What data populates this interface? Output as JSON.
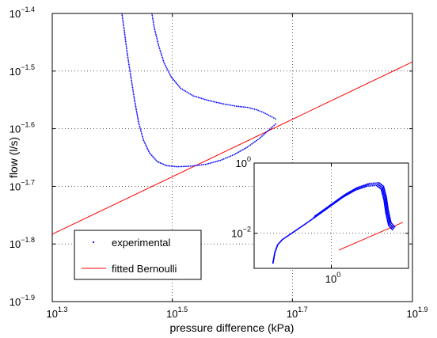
{
  "chart_data": [
    {
      "id": "main",
      "type": "scatter",
      "title": "",
      "xlabel": "pressure difference (kPa)",
      "ylabel": "flow (l/s)",
      "xscale": "log",
      "yscale": "log",
      "xlim_log10": [
        1.3,
        1.9
      ],
      "ylim_log10": [
        -1.9,
        -1.4
      ],
      "xticks": [
        {
          "base": "10",
          "exp": "1.3",
          "log10": 1.3
        },
        {
          "base": "10",
          "exp": "1.5",
          "log10": 1.5
        },
        {
          "base": "10",
          "exp": "1.7",
          "log10": 1.7
        },
        {
          "base": "10",
          "exp": "1.9",
          "log10": 1.9
        }
      ],
      "yticks": [
        {
          "base": "10",
          "exp": "−1.4",
          "log10": -1.4
        },
        {
          "base": "10",
          "exp": "−1.5",
          "log10": -1.5
        },
        {
          "base": "10",
          "exp": "−1.6",
          "log10": -1.6
        },
        {
          "base": "10",
          "exp": "−1.7",
          "log10": -1.7
        },
        {
          "base": "10",
          "exp": "−1.8",
          "log10": -1.8
        },
        {
          "base": "10",
          "exp": "−1.9",
          "log10": -1.9
        }
      ],
      "grid": "dotted, at major ticks",
      "legend_position": "bottom-left",
      "series": [
        {
          "name": "experimental",
          "style": "points",
          "color": "#0000ff",
          "branches_log10": [
            [
              [
                1.416,
                -1.4
              ],
              [
                1.42,
                -1.43
              ],
              [
                1.425,
                -1.47
              ],
              [
                1.431,
                -1.51
              ],
              [
                1.437,
                -1.55
              ],
              [
                1.444,
                -1.59
              ],
              [
                1.452,
                -1.62
              ],
              [
                1.462,
                -1.642
              ],
              [
                1.475,
                -1.657
              ],
              [
                1.49,
                -1.664
              ],
              [
                1.507,
                -1.666
              ],
              [
                1.53,
                -1.665
              ],
              [
                1.555,
                -1.662
              ],
              [
                1.58,
                -1.655
              ],
              [
                1.603,
                -1.645
              ],
              [
                1.625,
                -1.632
              ],
              [
                1.645,
                -1.617
              ],
              [
                1.66,
                -1.603
              ],
              [
                1.672,
                -1.592
              ]
            ],
            [
              [
                1.466,
                -1.4
              ],
              [
                1.47,
                -1.425
              ],
              [
                1.477,
                -1.455
              ],
              [
                1.486,
                -1.485
              ],
              [
                1.498,
                -1.51
              ],
              [
                1.514,
                -1.53
              ],
              [
                1.535,
                -1.543
              ],
              [
                1.56,
                -1.551
              ],
              [
                1.585,
                -1.557
              ],
              [
                1.607,
                -1.561
              ],
              [
                1.625,
                -1.563
              ],
              [
                1.64,
                -1.567
              ],
              [
                1.652,
                -1.572
              ],
              [
                1.663,
                -1.578
              ],
              [
                1.672,
                -1.583
              ]
            ]
          ]
        },
        {
          "name": "fitted Bernoulli",
          "style": "line",
          "color": "#ff0000",
          "x_log10": [
            1.3,
            1.9
          ],
          "y_log10": [
            -1.783,
            -1.484
          ]
        }
      ]
    },
    {
      "id": "inset",
      "type": "scatter",
      "title": "",
      "xlabel": "",
      "ylabel": "",
      "xscale": "log",
      "yscale": "log",
      "xlim_log10": [
        -0.82,
        0.82
      ],
      "ylim_log10": [
        -3.0,
        0.0
      ],
      "xticks": [
        {
          "base": "10",
          "exp": "0",
          "log10": 0
        }
      ],
      "yticks": [
        {
          "base": "10",
          "exp": "0",
          "log10": 0
        },
        {
          "base": "10",
          "exp": "−2",
          "log10": -2
        }
      ],
      "grid": "dotted, at major ticks",
      "series": [
        {
          "name": "experimental",
          "style": "points",
          "color": "#0000ff",
          "path_log10": [
            [
              -0.62,
              -2.85
            ],
            [
              -0.6,
              -2.55
            ],
            [
              -0.57,
              -2.33
            ],
            [
              -0.52,
              -2.18
            ],
            [
              -0.42,
              -2.0
            ],
            [
              -0.3,
              -1.78
            ],
            [
              -0.15,
              -1.5
            ],
            [
              0.0,
              -1.21
            ],
            [
              0.12,
              -0.98
            ],
            [
              0.25,
              -0.78
            ],
            [
              0.38,
              -0.66
            ],
            [
              0.48,
              -0.64
            ],
            [
              0.53,
              -0.74
            ],
            [
              0.56,
              -1.05
            ],
            [
              0.58,
              -1.42
            ],
            [
              0.61,
              -1.78
            ],
            [
              0.65,
              -1.9
            ]
          ]
        },
        {
          "name": "fitted Bernoulli",
          "style": "line",
          "color": "#ff0000",
          "x_log10": [
            0.08,
            0.76
          ],
          "y_log10": [
            -2.48,
            -1.69
          ]
        }
      ]
    }
  ],
  "legend": {
    "entries": [
      {
        "label": "experimental",
        "marker": "dot",
        "color": "#0000ff"
      },
      {
        "label": "fitted Bernoulli",
        "marker": "line",
        "color": "#ff0000"
      }
    ]
  }
}
